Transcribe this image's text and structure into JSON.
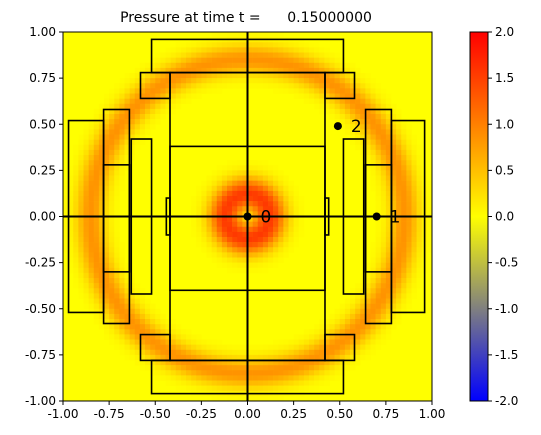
{
  "chart_data": {
    "type": "heatmap",
    "title": "Pressure at time t =      0.15000000",
    "xlabel": "",
    "ylabel": "",
    "xlim": [
      -1.0,
      1.0
    ],
    "ylim": [
      -1.0,
      1.0
    ],
    "x_ticks": [
      "-1.00",
      "-0.75",
      "-0.50",
      "-0.25",
      "0.00",
      "0.25",
      "0.50",
      "0.75",
      "1.00"
    ],
    "y_ticks": [
      "-1.00",
      "-0.75",
      "-0.50",
      "-0.25",
      "0.00",
      "0.25",
      "0.50",
      "0.75",
      "1.00"
    ],
    "x_tick_values": [
      -1.0,
      -0.75,
      -0.5,
      -0.25,
      0.0,
      0.25,
      0.5,
      0.75,
      1.0
    ],
    "y_tick_values": [
      -1.0,
      -0.75,
      -0.5,
      -0.25,
      0.0,
      0.25,
      0.5,
      0.75,
      1.0
    ],
    "grid": false,
    "field": {
      "description": "Radially symmetric pressure: peak ring near r=0.12, secondary ring near r=0.85, background 0",
      "rings": [
        {
          "radius": 0.12,
          "width": 0.09,
          "amplitude": 1.55
        },
        {
          "radius": 0.85,
          "width": 0.08,
          "amplitude": 0.85
        }
      ]
    },
    "colorbar": {
      "vmin": -2.0,
      "vmax": 2.0,
      "colors": [
        "#0000ff",
        "#ffff00",
        "#ff0000"
      ],
      "ticks": [
        "-2.0",
        "-1.5",
        "-1.0",
        "-0.5",
        "0.0",
        "0.5",
        "1.0",
        "1.5",
        "2.0"
      ],
      "tick_values": [
        -2.0,
        -1.5,
        -1.0,
        -0.5,
        0.0,
        0.5,
        1.0,
        1.5,
        2.0
      ]
    },
    "markers": [
      {
        "label": "0",
        "x": 0.0,
        "y": 0.0
      },
      {
        "label": "1",
        "x": 0.7,
        "y": 0.0
      },
      {
        "label": "2",
        "x": 0.49,
        "y": 0.49
      }
    ],
    "outline_rects": [
      [
        -0.52,
        0.78,
        0.52,
        0.96
      ],
      [
        -0.52,
        -0.96,
        0.52,
        -0.78
      ],
      [
        -0.58,
        0.64,
        -0.42,
        0.78
      ],
      [
        0.42,
        0.64,
        0.58,
        0.78
      ],
      [
        -0.58,
        -0.78,
        -0.42,
        -0.64
      ],
      [
        0.42,
        -0.78,
        0.58,
        -0.64
      ],
      [
        -0.42,
        -0.78,
        0.42,
        0.78
      ],
      [
        -0.42,
        -0.4,
        0.42,
        0.38
      ],
      [
        -0.44,
        -0.1,
        -0.42,
        0.1
      ],
      [
        0.42,
        -0.1,
        0.44,
        0.1
      ],
      [
        -0.97,
        -0.52,
        -0.78,
        0.52
      ],
      [
        -0.78,
        -0.58,
        -0.64,
        0.58
      ],
      [
        -0.78,
        -0.3,
        -0.64,
        0.28
      ],
      [
        -0.63,
        -0.42,
        -0.52,
        0.42
      ],
      [
        0.52,
        -0.42,
        0.63,
        0.42
      ],
      [
        0.64,
        -0.58,
        0.78,
        0.58
      ],
      [
        0.64,
        -0.3,
        0.78,
        0.28
      ],
      [
        0.78,
        -0.52,
        0.96,
        0.52
      ]
    ],
    "axis_lines": [
      [
        -1.0,
        0.0,
        1.0,
        0.0
      ],
      [
        0.0,
        -1.0,
        0.0,
        1.0
      ]
    ]
  }
}
